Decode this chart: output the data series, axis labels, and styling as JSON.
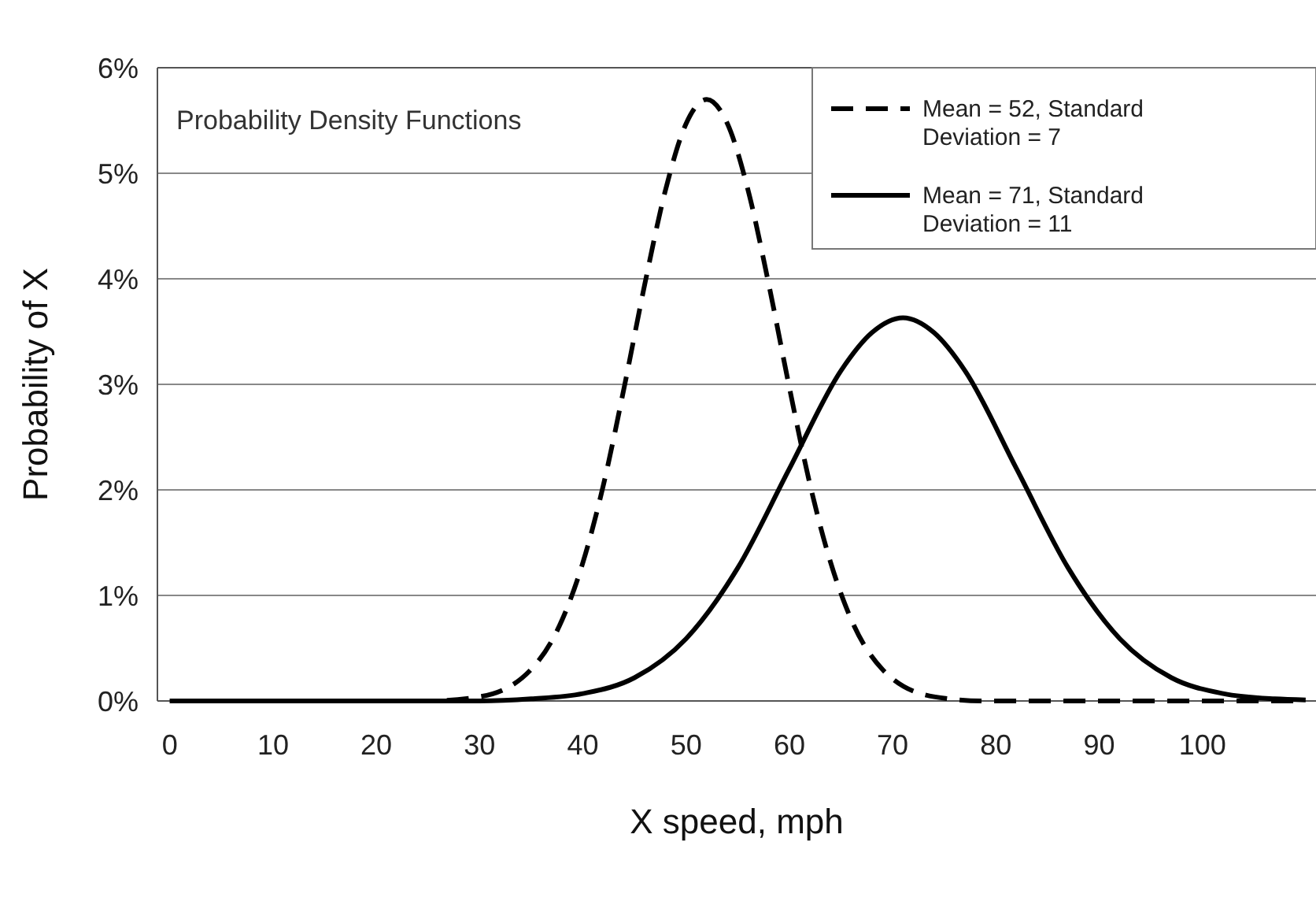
{
  "chart_data": {
    "type": "line",
    "xlabel": "X speed, mph",
    "ylabel": "Probability of X",
    "annotations": [
      "Probability Density Functions"
    ],
    "xlim": [
      -1.2,
      111
    ],
    "xticks": [
      0,
      10,
      20,
      30,
      40,
      50,
      60,
      70,
      80,
      90,
      100
    ],
    "ylim": [
      0,
      6
    ],
    "yticks": [
      {
        "value": 0,
        "label": "0%"
      },
      {
        "value": 1,
        "label": "1%"
      },
      {
        "value": 2,
        "label": "2%"
      },
      {
        "value": 3,
        "label": "3%"
      },
      {
        "value": 4,
        "label": "4%"
      },
      {
        "value": 5,
        "label": "5%"
      },
      {
        "value": 6,
        "label": "6%"
      }
    ],
    "grid": "y",
    "legend": "top right",
    "marker": "none",
    "series": [
      {
        "name": "Mean = 52, Standard Deviation = 7",
        "color": "#000000",
        "line_style": "dashed",
        "x": [
          0,
          25,
          30,
          35,
          38,
          40,
          42,
          44,
          46,
          48,
          50,
          52,
          54,
          56,
          58,
          60,
          62,
          64,
          66,
          69,
          74,
          79,
          110
        ],
        "values": [
          0,
          0,
          0.04,
          0.3,
          0.77,
          1.31,
          2.05,
          2.97,
          3.95,
          4.84,
          5.47,
          5.7,
          5.47,
          4.84,
          3.95,
          2.97,
          2.05,
          1.31,
          0.77,
          0.3,
          0.04,
          0,
          0
        ]
      },
      {
        "name": "Mean = 71, Standard Deviation = 11",
        "color": "#000000",
        "line_style": "solid",
        "x": [
          0,
          30,
          35,
          40,
          45,
          50,
          55,
          60,
          65,
          68,
          71,
          74,
          77,
          82,
          87,
          92,
          97,
          102,
          107,
          110
        ],
        "values": [
          0,
          0,
          0.02,
          0.07,
          0.22,
          0.59,
          1.26,
          2.2,
          3.13,
          3.49,
          3.63,
          3.49,
          3.13,
          2.2,
          1.26,
          0.59,
          0.22,
          0.07,
          0.02,
          0.01
        ]
      }
    ]
  }
}
